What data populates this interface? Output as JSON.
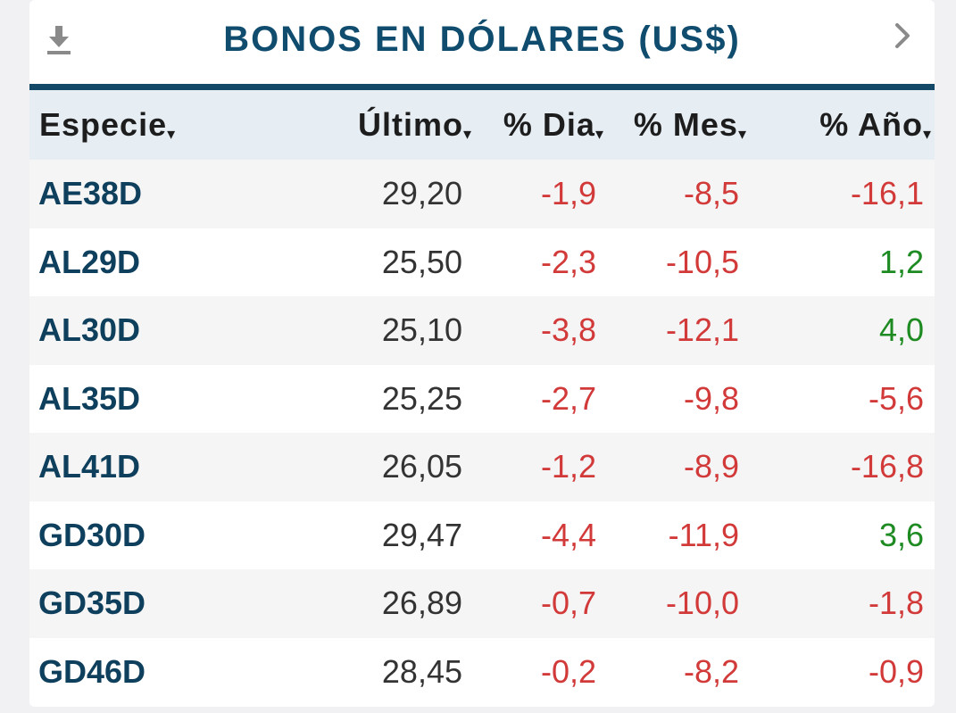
{
  "header": {
    "title": "BONOS EN DÓLARES (US$)",
    "download_icon": "download-icon",
    "next_icon": "chevron-right-icon"
  },
  "colors": {
    "title": "#0f4c6e",
    "rule": "#134866",
    "header_bg": "#e6edf3",
    "negative": "#d23a3a",
    "positive": "#1d8a22",
    "symbol": "#0e3f5c"
  },
  "table": {
    "columns": [
      "Especie",
      "Último",
      "% Dia",
      "% Mes",
      "% Año"
    ],
    "sort_arrow": "▾",
    "rows": [
      {
        "especie": "AE38D",
        "ultimo": "29,20",
        "dia": "-1,9",
        "mes": "-8,5",
        "anio": "-16,1"
      },
      {
        "especie": "AL29D",
        "ultimo": "25,50",
        "dia": "-2,3",
        "mes": "-10,5",
        "anio": "1,2"
      },
      {
        "especie": "AL30D",
        "ultimo": "25,10",
        "dia": "-3,8",
        "mes": "-12,1",
        "anio": "4,0"
      },
      {
        "especie": "AL35D",
        "ultimo": "25,25",
        "dia": "-2,7",
        "mes": "-9,8",
        "anio": "-5,6"
      },
      {
        "especie": "AL41D",
        "ultimo": "26,05",
        "dia": "-1,2",
        "mes": "-8,9",
        "anio": "-16,8"
      },
      {
        "especie": "GD30D",
        "ultimo": "29,47",
        "dia": "-4,4",
        "mes": "-11,9",
        "anio": "3,6"
      },
      {
        "especie": "GD35D",
        "ultimo": "26,89",
        "dia": "-0,7",
        "mes": "-10,0",
        "anio": "-1,8"
      },
      {
        "especie": "GD46D",
        "ultimo": "28,45",
        "dia": "-0,2",
        "mes": "-8,2",
        "anio": "-0,9"
      }
    ]
  }
}
